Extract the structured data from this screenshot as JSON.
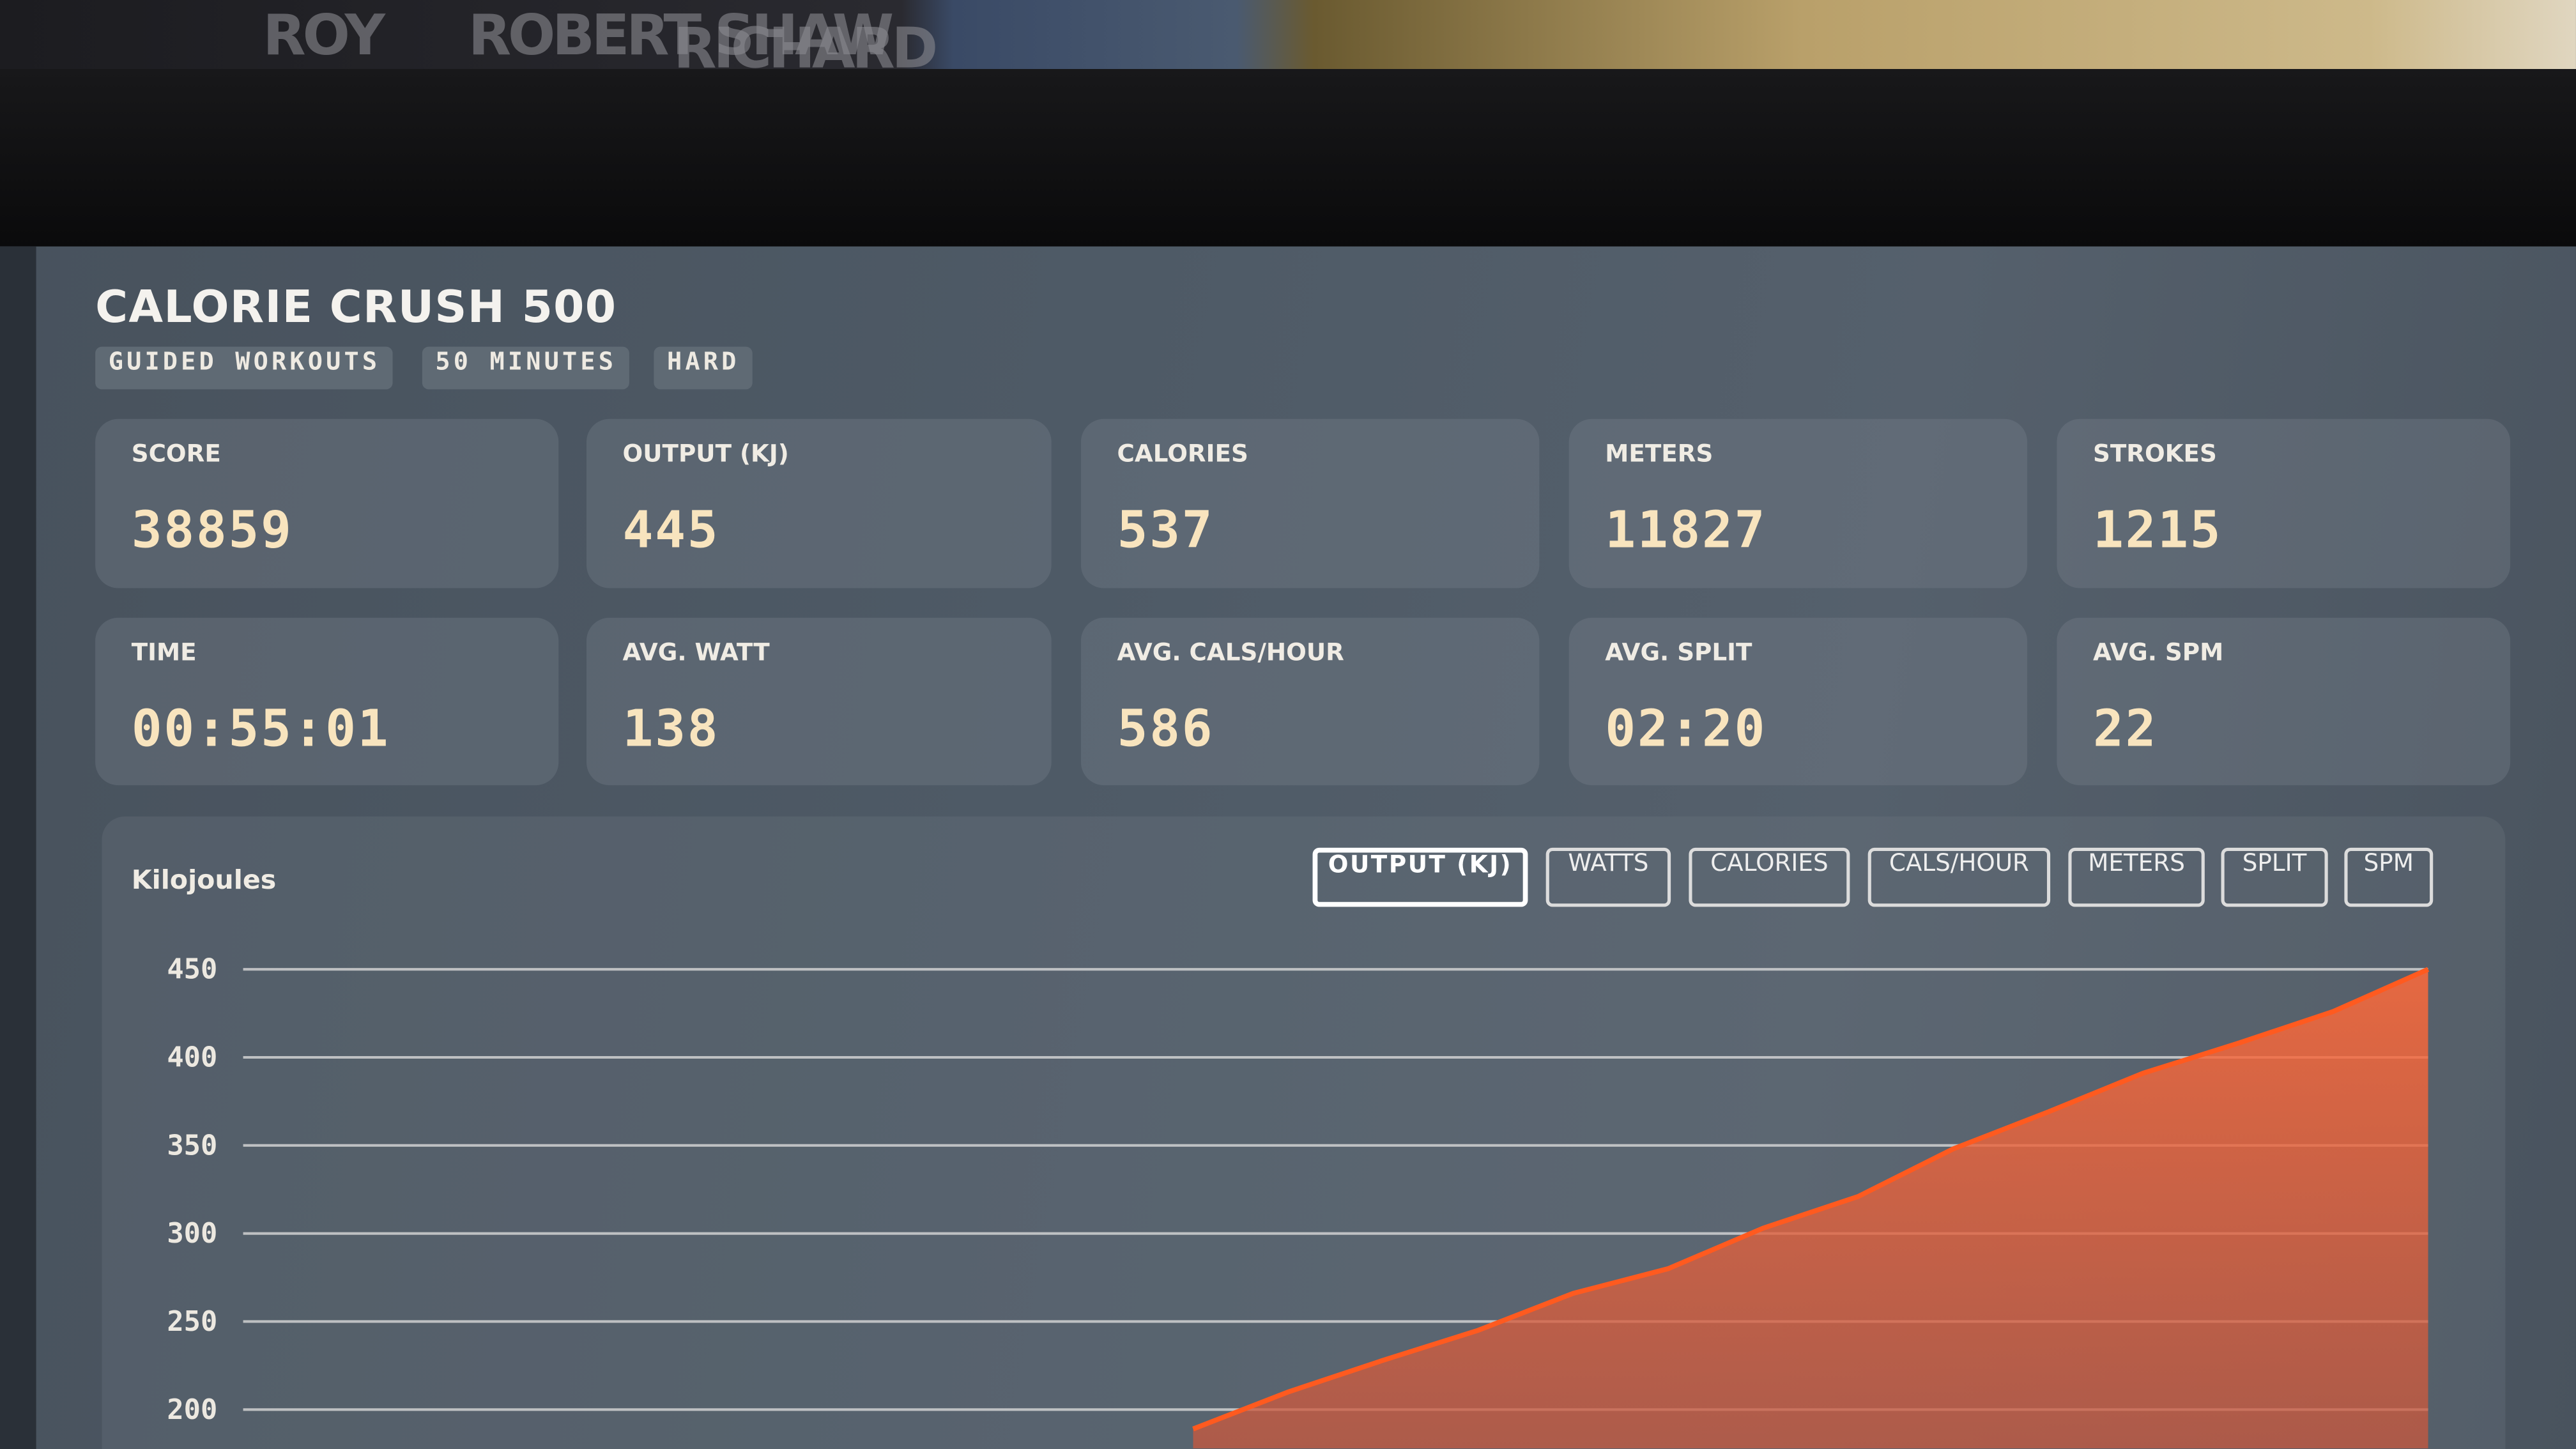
{
  "background": {
    "poster_text": [
      "ROY",
      "ROBERT SHAW",
      "RICHARD"
    ]
  },
  "header": {
    "title": "CALORIE CRUSH 500",
    "tags": [
      "GUIDED WORKOUTS",
      "50 MINUTES",
      "HARD"
    ]
  },
  "stats": [
    {
      "label": "SCORE",
      "value": 38859
    },
    {
      "label": "OUTPUT (KJ)",
      "value": 445
    },
    {
      "label": "CALORIES",
      "value": 537
    },
    {
      "label": "METERS",
      "value": 11827
    },
    {
      "label": "STROKES",
      "value": 1215
    },
    {
      "label": "TIME",
      "value": "00:55:01"
    },
    {
      "label": "AVG. WATT",
      "value": 138
    },
    {
      "label": "AVG. CALS/HOUR",
      "value": 586
    },
    {
      "label": "AVG. SPLIT",
      "value": "02:20"
    },
    {
      "label": "AVG. SPM",
      "value": 22
    }
  ],
  "chart_panel": {
    "label": "Kilojoules",
    "tabs": [
      "OUTPUT (KJ)",
      "WATTS",
      "CALORIES",
      "CALS/HOUR",
      "METERS",
      "SPLIT",
      "SPM"
    ]
  },
  "chart_data": {
    "type": "area",
    "categories": [
      null,
      null,
      null,
      null,
      null,
      null,
      null,
      null,
      null,
      null,
      null,
      null,
      null,
      null,
      null,
      null,
      null,
      null,
      null,
      null,
      null,
      null,
      null,
      null
    ],
    "values": [
      null,
      null,
      null,
      null,
      null,
      null,
      null,
      null,
      null,
      null,
      189,
      210,
      228,
      245,
      266,
      280,
      303,
      321,
      348,
      369,
      391,
      408,
      426,
      450
    ],
    "color": "#ff5a1f",
    "ylim": [
      178,
      460
    ],
    "yticks": [
      200,
      250,
      300,
      350,
      400,
      450
    ],
    "grid": true
  }
}
